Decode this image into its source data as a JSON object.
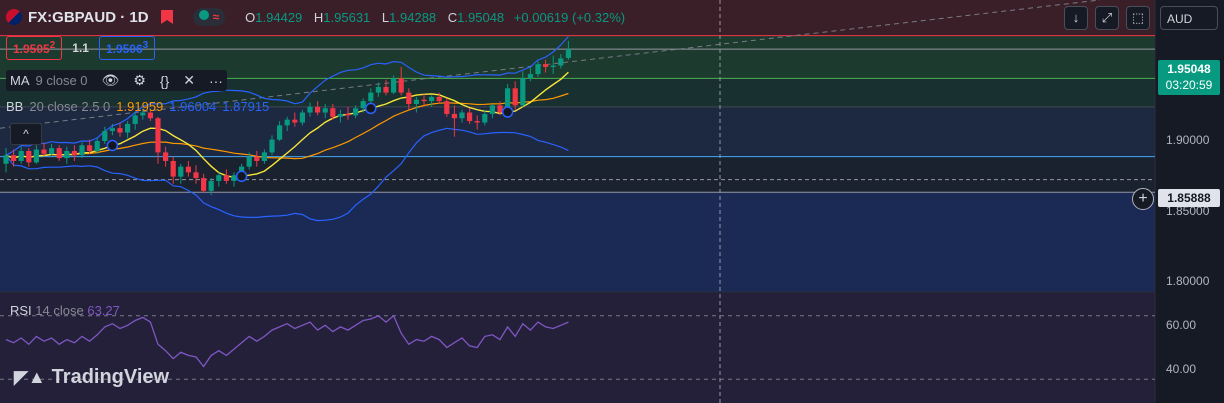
{
  "header": {
    "symbol": "FX:GBPAUD · 1D",
    "open_label": "O",
    "open": "1.94429",
    "high_label": "H",
    "high": "1.95631",
    "low_label": "L",
    "low": "1.94288",
    "close_label": "C",
    "close": "1.95048",
    "change": "+0.00619 (+0.32%)"
  },
  "trade": {
    "sell": "1.9505",
    "sell_small": "2",
    "spread": "1.1",
    "buy": "1.9506",
    "buy_small": "3"
  },
  "indicators": {
    "ma": {
      "name": "MA",
      "params": "9 close 0"
    },
    "bb": {
      "name": "BB",
      "params": "20 close 2.5 0",
      "basis": "1.91959",
      "upper": "1.96004",
      "lower": "1.87915"
    },
    "rsi": {
      "name": "RSI",
      "params": "14 close",
      "value": "63.27"
    }
  },
  "toolbar": {
    "currency": "AUD",
    "collapse": "^",
    "down": "↓",
    "fullscreen": "⤢",
    "screenshot": "⬚"
  },
  "price_axis": {
    "last_price": "1.95048",
    "countdown": "03:20:59",
    "crosshair_price": "1.85888",
    "ticks": [
      "1.90000",
      "1.85000",
      "1.80000"
    ],
    "rsi_ticks": [
      "60.00",
      "40.00"
    ]
  },
  "logo": "TradingView",
  "colors": {
    "up": "#089981",
    "down": "#f23645",
    "ma": "#f7e637",
    "bb_basis": "#ff9800",
    "bb_band": "#2962ff",
    "rsi": "#7e57c2"
  },
  "chart_data": {
    "type": "candlestick",
    "ylim": [
      1.78,
      1.985
    ],
    "candles": [
      [
        1.87,
        1.881,
        1.864,
        1.876
      ],
      [
        1.876,
        1.88,
        1.868,
        1.872
      ],
      [
        1.872,
        1.882,
        1.87,
        1.879
      ],
      [
        1.879,
        1.881,
        1.868,
        1.871
      ],
      [
        1.871,
        1.883,
        1.87,
        1.88
      ],
      [
        1.88,
        1.885,
        1.875,
        1.877
      ],
      [
        1.877,
        1.884,
        1.876,
        1.881
      ],
      [
        1.881,
        1.883,
        1.872,
        1.874
      ],
      [
        1.874,
        1.882,
        1.87,
        1.879
      ],
      [
        1.879,
        1.883,
        1.872,
        1.876
      ],
      [
        1.876,
        1.885,
        1.874,
        1.883
      ],
      [
        1.883,
        1.887,
        1.877,
        1.879
      ],
      [
        1.879,
        1.888,
        1.877,
        1.886
      ],
      [
        1.886,
        1.896,
        1.884,
        1.893
      ],
      [
        1.893,
        1.898,
        1.89,
        1.895
      ],
      [
        1.895,
        1.899,
        1.889,
        1.892
      ],
      [
        1.892,
        1.9,
        1.888,
        1.898
      ],
      [
        1.898,
        1.906,
        1.894,
        1.904
      ],
      [
        1.904,
        1.909,
        1.901,
        1.906
      ],
      [
        1.906,
        1.908,
        1.9,
        1.902
      ],
      [
        1.902,
        1.903,
        1.87,
        1.878
      ],
      [
        1.878,
        1.882,
        1.868,
        1.872
      ],
      [
        1.872,
        1.875,
        1.856,
        1.861
      ],
      [
        1.861,
        1.87,
        1.856,
        1.868
      ],
      [
        1.868,
        1.872,
        1.861,
        1.864
      ],
      [
        1.864,
        1.869,
        1.856,
        1.86
      ],
      [
        1.86,
        1.863,
        1.85,
        1.851
      ],
      [
        1.851,
        1.86,
        1.848,
        1.858
      ],
      [
        1.858,
        1.864,
        1.854,
        1.862
      ],
      [
        1.862,
        1.866,
        1.856,
        1.858
      ],
      [
        1.858,
        1.864,
        1.854,
        1.862
      ],
      [
        1.862,
        1.87,
        1.859,
        1.868
      ],
      [
        1.868,
        1.878,
        1.866,
        1.875
      ],
      [
        1.875,
        1.879,
        1.868,
        1.872
      ],
      [
        1.872,
        1.88,
        1.87,
        1.878
      ],
      [
        1.878,
        1.89,
        1.876,
        1.887
      ],
      [
        1.887,
        1.9,
        1.886,
        1.897
      ],
      [
        1.897,
        1.903,
        1.893,
        1.901
      ],
      [
        1.901,
        1.906,
        1.896,
        1.899
      ],
      [
        1.899,
        1.908,
        1.897,
        1.906
      ],
      [
        1.906,
        1.913,
        1.903,
        1.91
      ],
      [
        1.91,
        1.914,
        1.904,
        1.906
      ],
      [
        1.906,
        1.912,
        1.902,
        1.909
      ],
      [
        1.909,
        1.912,
        1.901,
        1.903
      ],
      [
        1.903,
        1.908,
        1.899,
        1.905
      ],
      [
        1.905,
        1.91,
        1.901,
        1.904
      ],
      [
        1.904,
        1.911,
        1.902,
        1.909
      ],
      [
        1.909,
        1.916,
        1.906,
        1.914
      ],
      [
        1.914,
        1.923,
        1.912,
        1.92
      ],
      [
        1.92,
        1.927,
        1.917,
        1.924
      ],
      [
        1.924,
        1.929,
        1.918,
        1.92
      ],
      [
        1.92,
        1.932,
        1.919,
        1.93
      ],
      [
        1.93,
        1.938,
        1.918,
        1.92
      ],
      [
        1.92,
        1.923,
        1.908,
        1.912
      ],
      [
        1.912,
        1.917,
        1.906,
        1.915
      ],
      [
        1.915,
        1.919,
        1.911,
        1.914
      ],
      [
        1.914,
        1.918,
        1.91,
        1.917
      ],
      [
        1.917,
        1.92,
        1.912,
        1.914
      ],
      [
        1.914,
        1.916,
        1.903,
        1.905
      ],
      [
        1.905,
        1.911,
        1.889,
        1.902
      ],
      [
        1.902,
        1.908,
        1.899,
        1.906
      ],
      [
        1.906,
        1.909,
        1.898,
        1.9
      ],
      [
        1.9,
        1.904,
        1.894,
        1.899
      ],
      [
        1.899,
        1.908,
        1.897,
        1.905
      ],
      [
        1.905,
        1.912,
        1.902,
        1.911
      ],
      [
        1.911,
        1.914,
        1.904,
        1.906
      ],
      [
        1.906,
        1.926,
        1.905,
        1.923
      ],
      [
        1.923,
        1.928,
        1.908,
        1.911
      ],
      [
        1.911,
        1.935,
        1.91,
        1.93
      ],
      [
        1.93,
        1.938,
        1.928,
        1.933
      ],
      [
        1.933,
        1.942,
        1.931,
        1.94
      ],
      [
        1.94,
        1.943,
        1.934,
        1.938
      ],
      [
        1.938,
        1.946,
        1.933,
        1.939
      ],
      [
        1.939,
        1.947,
        1.937,
        1.944
      ],
      [
        1.9443,
        1.9563,
        1.9429,
        1.9505
      ]
    ],
    "rsi": [
      55,
      53,
      56,
      52,
      57,
      54,
      56,
      52,
      55,
      53,
      57,
      54,
      58,
      63,
      65,
      62,
      64,
      67,
      69,
      66,
      52,
      48,
      43,
      47,
      45,
      44,
      38,
      45,
      48,
      45,
      49,
      53,
      57,
      54,
      57,
      61,
      63,
      65,
      62,
      64,
      66,
      61,
      64,
      60,
      63,
      61,
      64,
      67,
      68,
      70,
      66,
      70,
      59,
      52,
      55,
      54,
      57,
      55,
      50,
      53,
      56,
      51,
      50,
      57,
      58,
      55,
      63,
      57,
      65,
      61,
      66,
      63,
      62,
      64,
      66
    ]
  }
}
